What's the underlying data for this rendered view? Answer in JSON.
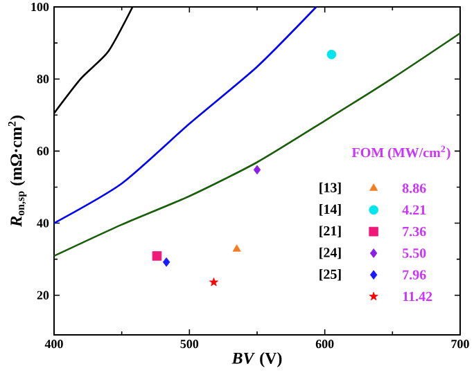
{
  "chart_data": {
    "type": "scatter",
    "xlabel": "*BV* (V)",
    "ylabel": "*R*$_{on,sp}$ (mΩ·cm$^{2}$)",
    "legend_title": "FOM (MW/cm$^{2}$)",
    "xlim": [
      400,
      700
    ],
    "ylim": [
      9,
      100
    ],
    "xticks": [
      400,
      500,
      600,
      700
    ],
    "yticks": [
      20,
      40,
      60,
      80,
      100
    ],
    "legend": "right",
    "annotations": [
      "8.86",
      "4.21",
      "7.36",
      "5.50",
      "7.96",
      "11.42"
    ],
    "series": [
      {
        "type": "line",
        "color": "#000000",
        "x": [
          400,
          420,
          440,
          458
        ],
        "values": [
          70.5,
          80.2,
          87.6,
          100
        ]
      },
      {
        "type": "line",
        "color": "#0000ff",
        "x": [
          400,
          450,
          500,
          550,
          593.7
        ],
        "values": [
          40,
          51,
          67.6,
          83.4,
          100
        ]
      },
      {
        "type": "line",
        "color": "#1a5e0a",
        "x": [
          400,
          450,
          500,
          550,
          600,
          650,
          700
        ],
        "values": [
          30.9,
          39.6,
          47.5,
          56.9,
          68.4,
          80.2,
          92.7
        ]
      },
      {
        "name": "[13]",
        "color": "#f57c1f",
        "marker": "triangle",
        "x": [
          535
        ],
        "values": [
          32.8
        ]
      },
      {
        "name": "[14]",
        "color": "#00e5ee",
        "marker": "circle",
        "x": [
          605
        ],
        "values": [
          86.8
        ]
      },
      {
        "name": "[21]",
        "color": "#f0197a",
        "marker": "square",
        "x": [
          476
        ],
        "values": [
          30.9
        ]
      },
      {
        "name": "[24]",
        "color": "#8b1ee8",
        "marker": "diamond",
        "x": [
          550
        ],
        "values": [
          54.8
        ]
      },
      {
        "name": "[25]",
        "color": "#1a1aff",
        "marker": "diamond",
        "x": [
          483
        ],
        "values": [
          29.2
        ]
      },
      {
        "color": "#ff0000",
        "marker": "star",
        "x": [
          518
        ],
        "values": [
          23.6
        ]
      }
    ]
  }
}
